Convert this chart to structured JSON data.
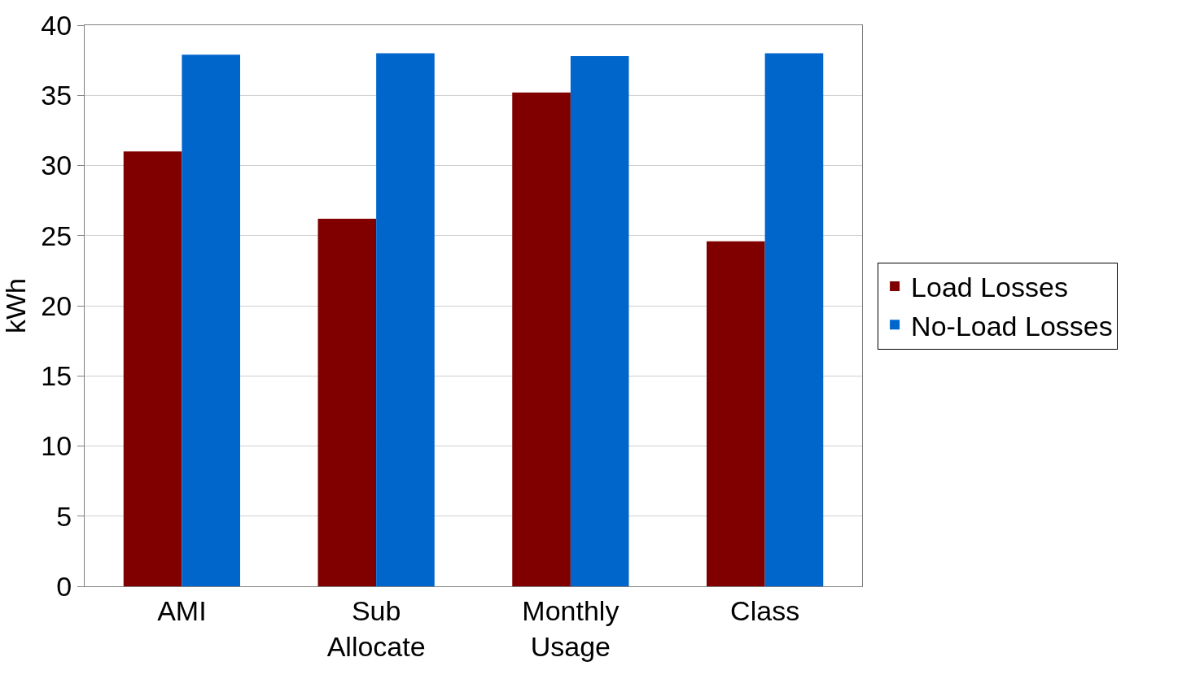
{
  "chart_data": {
    "type": "bar",
    "ylabel": "kWh",
    "categories": [
      "AMI",
      "Sub Allocate",
      "Monthly Usage",
      "Class"
    ],
    "series": [
      {
        "name": "Load Losses",
        "color": "#800000",
        "values": [
          31.0,
          26.2,
          35.2,
          24.6
        ]
      },
      {
        "name": "No-Load Losses",
        "color": "#0066cc",
        "values": [
          37.9,
          38.0,
          37.8,
          38.0
        ]
      }
    ],
    "ylim": [
      0,
      40
    ],
    "yticks": [
      0,
      5,
      10,
      15,
      20,
      25,
      30,
      35,
      40
    ],
    "grid": "y",
    "legend": "right"
  }
}
